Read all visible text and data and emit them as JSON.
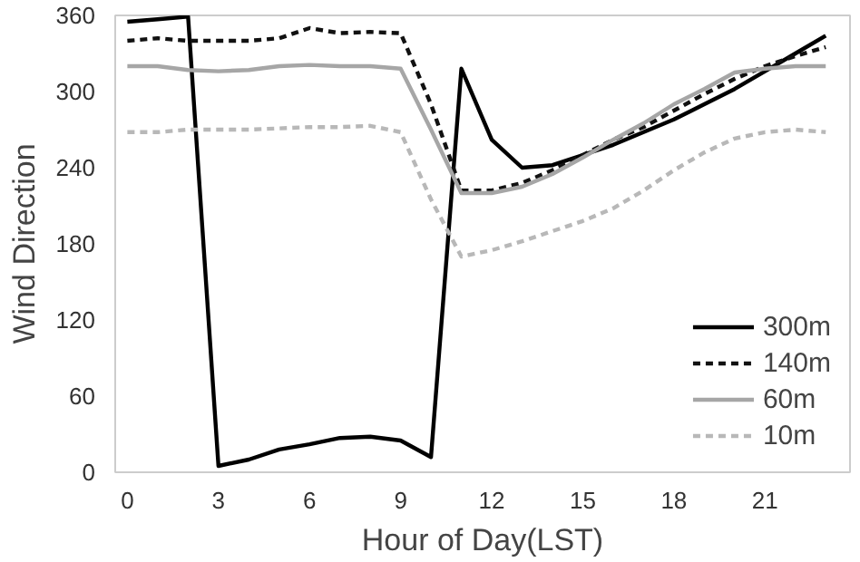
{
  "chart_data": {
    "type": "line",
    "xlabel": "Hour of Day(LST)",
    "ylabel": "Wind Direction",
    "x": [
      0,
      1,
      2,
      3,
      4,
      5,
      6,
      7,
      8,
      9,
      10,
      11,
      12,
      13,
      14,
      15,
      16,
      17,
      18,
      19,
      20,
      21,
      22,
      23
    ],
    "xlim": [
      -0.4,
      23.8
    ],
    "xticks": [
      0,
      3,
      6,
      9,
      12,
      15,
      18,
      21
    ],
    "ylim": [
      0,
      360
    ],
    "yticks": [
      0,
      60,
      120,
      180,
      240,
      300,
      360
    ],
    "grid": false,
    "legend": "bottom right",
    "series": [
      {
        "name": "300m",
        "color": "#000000",
        "line_style": "solid",
        "values": [
          355,
          357,
          359,
          5,
          10,
          18,
          22,
          27,
          28,
          25,
          12,
          318,
          262,
          240,
          242,
          250,
          258,
          268,
          278,
          290,
          302,
          316,
          330,
          344
        ]
      },
      {
        "name": "140m",
        "color": "#111111",
        "line_style": "dashed",
        "values": [
          340,
          342,
          340,
          340,
          340,
          342,
          350,
          346,
          347,
          346,
          290,
          222,
          222,
          228,
          238,
          250,
          262,
          272,
          285,
          298,
          310,
          320,
          328,
          335
        ]
      },
      {
        "name": "60m",
        "color": "#a6a6a6",
        "line_style": "solid",
        "values": [
          320,
          320,
          317,
          316,
          317,
          320,
          321,
          320,
          320,
          318,
          270,
          220,
          220,
          225,
          235,
          248,
          262,
          275,
          290,
          302,
          315,
          318,
          320,
          320
        ]
      },
      {
        "name": "10m",
        "color": "#b8b8b8",
        "line_style": "dashed",
        "values": [
          268,
          268,
          270,
          270,
          270,
          271,
          272,
          272,
          273,
          268,
          215,
          170,
          175,
          182,
          190,
          198,
          208,
          222,
          238,
          252,
          263,
          268,
          270,
          268
        ]
      }
    ]
  }
}
